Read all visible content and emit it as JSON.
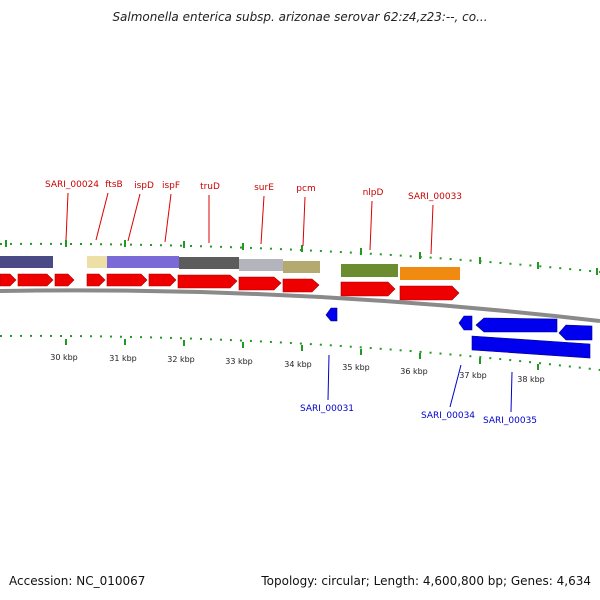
{
  "title": "Salmonella enterica subsp. arizonae serovar 62:z4,z23:--, co...",
  "footer": {
    "accession": "Accession: NC_010067",
    "summary": "Topology: circular; Length: 4,600,800 bp; Genes: 4,634"
  },
  "colors": {
    "forward_gene": "#ee0000",
    "reverse_gene": "#0000ee",
    "backbone": "#888888",
    "tick": "#229922"
  },
  "top_labels": [
    {
      "text": "SARI_00024"
    },
    {
      "text": "ftsB"
    },
    {
      "text": "ispD"
    },
    {
      "text": "ispF"
    },
    {
      "text": "truD"
    },
    {
      "text": "surE"
    },
    {
      "text": "pcm"
    },
    {
      "text": "nlpD"
    },
    {
      "text": "SARI_00033"
    }
  ],
  "bottom_labels": [
    {
      "text": "SARI_00031"
    },
    {
      "text": "SARI_00034"
    },
    {
      "text": "SARI_00035"
    }
  ],
  "scale_labels": [
    "30 kbp",
    "31 kbp",
    "32 kbp",
    "33 kbp",
    "34 kbp",
    "35 kbp",
    "36 kbp",
    "37 kbp",
    "38 kbp"
  ]
}
